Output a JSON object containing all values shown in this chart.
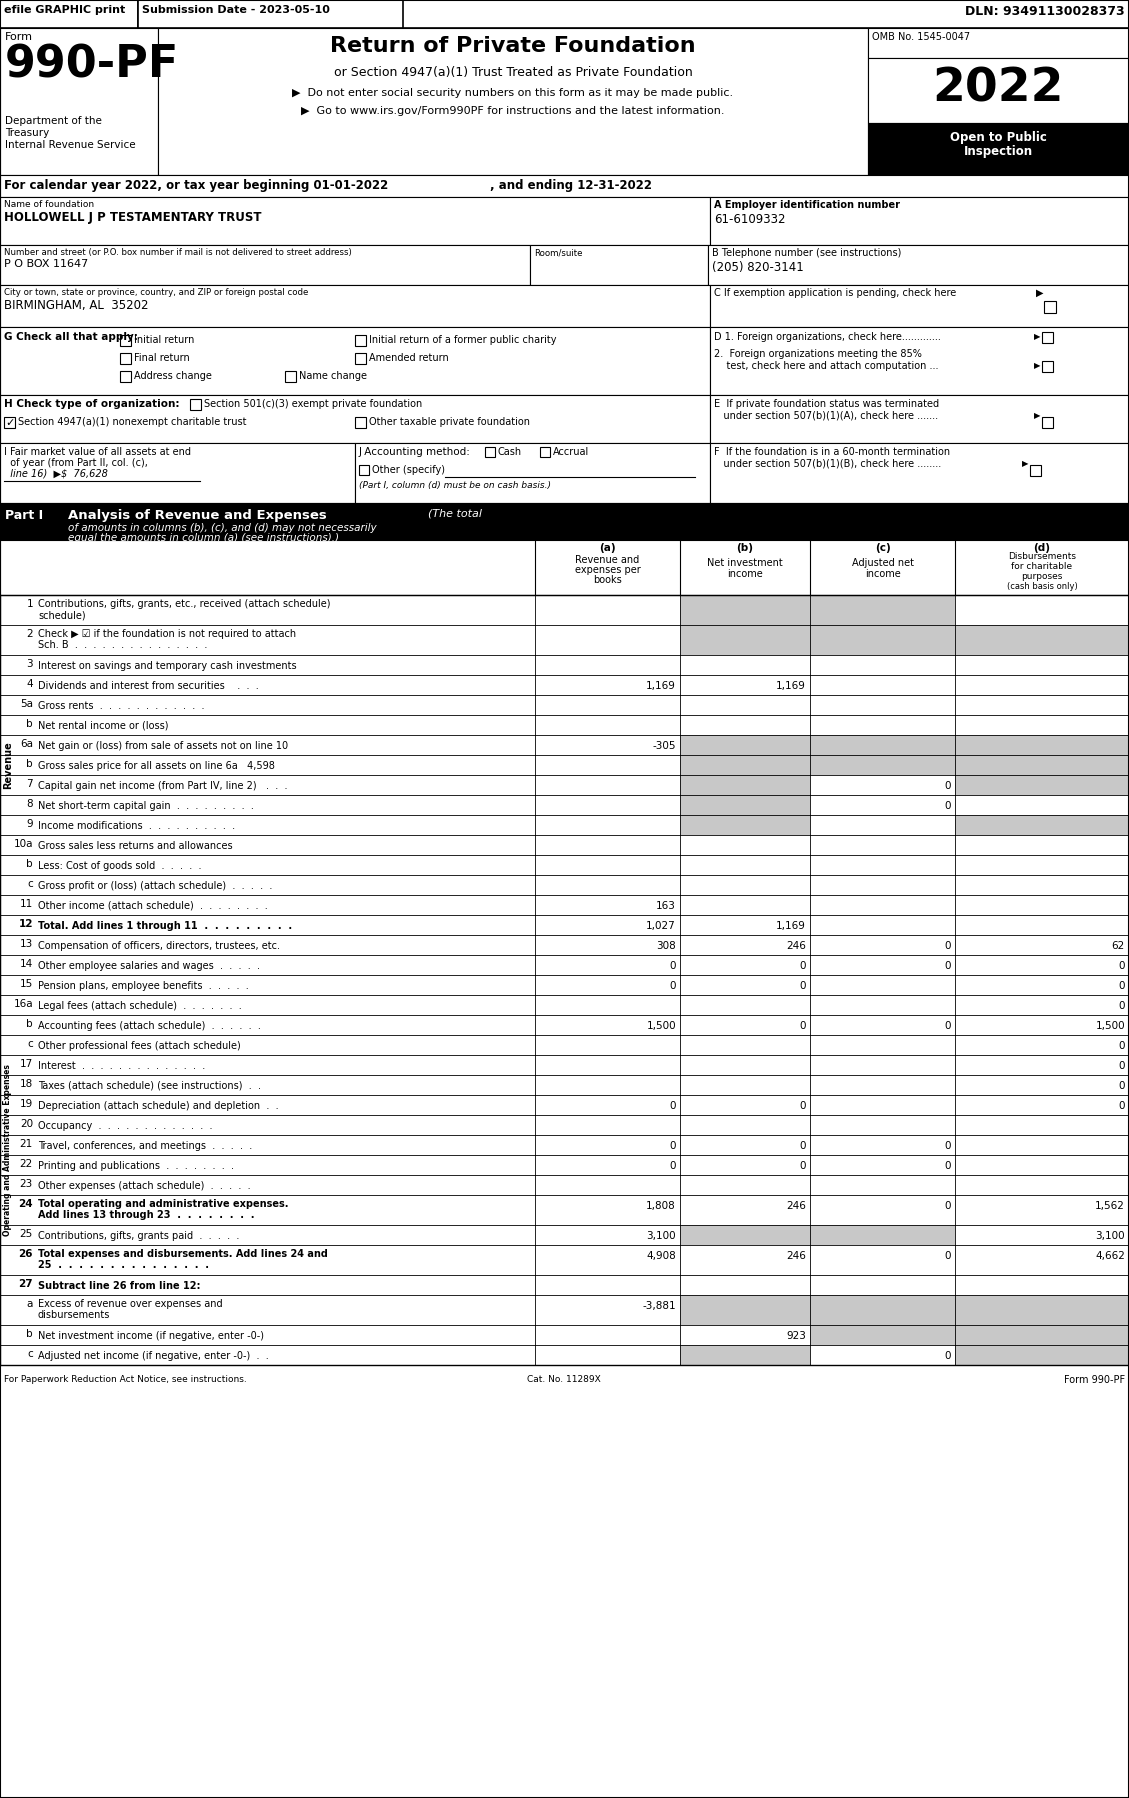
{
  "efile_text": "efile GRAPHIC print",
  "submission_date": "Submission Date - 2023-05-10",
  "dln": "DLN: 93491130028373",
  "omb": "OMB No. 1545-0047",
  "year": "2022",
  "form_label": "Form",
  "form_number": "990-PF",
  "title_main": "Return of Private Foundation",
  "title_sub": "or Section 4947(a)(1) Trust Treated as Private Foundation",
  "bullet1": "▶  Do not enter social security numbers on this form as it may be made public.",
  "bullet2": "▶  Go to www.irs.gov/Form990PF for instructions and the latest information.",
  "dept1": "Department of the",
  "dept2": "Treasury",
  "dept3": "Internal Revenue Service",
  "open_public": "Open to Public",
  "inspection": "Inspection",
  "calendar_line": "For calendar year 2022, or tax year beginning 01-01-2022",
  "ending_line": ", and ending 12-31-2022",
  "name_label": "Name of foundation",
  "name_value": "HOLLOWELL J P TESTAMENTARY TRUST",
  "ein_label": "A Employer identification number",
  "ein_value": "61-6109332",
  "addr_label": "Number and street (or P.O. box number if mail is not delivered to street address)",
  "addr_value": "P O BOX 11647",
  "room_label": "Room/suite",
  "phone_label": "B Telephone number (see instructions)",
  "phone_value": "(205) 820-3141",
  "city_label": "City or town, state or province, country, and ZIP or foreign postal code",
  "city_value": "BIRMINGHAM, AL  35202",
  "c_label": "C If exemption application is pending, check here",
  "g_label": "G Check all that apply:",
  "d1_label": "D 1. Foreign organizations, check here.............",
  "d2_line1": "2.  Foreign organizations meeting the 85%",
  "d2_line2": "    test, check here and attach computation ...",
  "e_line1": "E  If private foundation status was terminated",
  "e_line2": "   under section 507(b)(1)(A), check here .......",
  "h_label": "H Check type of organization:",
  "h_501": "Section 501(c)(3) exempt private foundation",
  "h_4947": "Section 4947(a)(1) nonexempt charitable trust",
  "h_other": "Other taxable private foundation",
  "i_line1": "I Fair market value of all assets at end",
  "i_line2": "  of year (from Part II, col. (c),",
  "i_line3": "  line 16)  ▶$  76,628",
  "j_label": "J Accounting method:",
  "j_cash": "Cash",
  "j_accrual": "Accrual",
  "j_other": "Other (specify)",
  "j_note": "(Part I, column (d) must be on cash basis.)",
  "f_line1": "F  If the foundation is in a 60-month termination",
  "f_line2": "   under section 507(b)(1)(B), check here ........",
  "part1_label": "Part I",
  "part1_title": "Analysis of Revenue and Expenses",
  "part1_desc1": "The total",
  "part1_desc2": "of amounts in columns (b), (c), and (d) may not necessarily",
  "part1_desc3": "equal the amounts in column (a) (see instructions).)",
  "col_a_lbl": "(a)",
  "col_b_lbl": "(b)",
  "col_c_lbl": "(c)",
  "col_d_lbl": "(d)",
  "col_a1": "Revenue and",
  "col_a2": "expenses per",
  "col_a3": "books",
  "col_b1": "Net investment",
  "col_b2": "income",
  "col_c1": "Adjusted net",
  "col_c2": "income",
  "col_d1": "Disbursements",
  "col_d2": "for charitable",
  "col_d3": "purposes",
  "col_d4": "(cash basis only)",
  "revenue_label": "Revenue",
  "expense_label": "Operating and Administrative Expenses",
  "rows": [
    {
      "num": "1",
      "label": "Contributions, gifts, grants, etc., received (attach schedule)",
      "two_line": true,
      "line2": "schedule)",
      "a": "",
      "b": "",
      "c": "",
      "d": "",
      "shaded": [
        false,
        true,
        true,
        false
      ],
      "bold": false
    },
    {
      "num": "2",
      "label": "Check ▶ ☑ if the foundation is not required to attach Sch. B  .  .  .  .  .  .  .  .  .  .  .  .  .  .  .",
      "two_line": true,
      "line1": "Check ▶ ☑ if the foundation is not required to attach",
      "line2": "Sch. B  .  .  .  .  .  .  .  .  .  .  .  .  .  .  .",
      "a": "",
      "b": "",
      "c": "",
      "d": "",
      "shaded": [
        false,
        true,
        true,
        true
      ],
      "bold": false
    },
    {
      "num": "3",
      "label": "Interest on savings and temporary cash investments",
      "two_line": false,
      "a": "",
      "b": "",
      "c": "",
      "d": "",
      "shaded": [
        false,
        false,
        false,
        false
      ],
      "bold": false
    },
    {
      "num": "4",
      "label": "Dividends and interest from securities    .  .  .",
      "two_line": false,
      "a": "1,169",
      "b": "1,169",
      "c": "",
      "d": "",
      "shaded": [
        false,
        false,
        false,
        false
      ],
      "bold": false
    },
    {
      "num": "5a",
      "label": "Gross rents  .  .  .  .  .  .  .  .  .  .  .  .",
      "two_line": false,
      "a": "",
      "b": "",
      "c": "",
      "d": "",
      "shaded": [
        false,
        false,
        false,
        false
      ],
      "bold": false
    },
    {
      "num": "b",
      "label": "Net rental income or (loss)",
      "two_line": false,
      "a": "",
      "b": "",
      "c": "",
      "d": "",
      "shaded": [
        false,
        false,
        false,
        false
      ],
      "bold": false
    },
    {
      "num": "6a",
      "label": "Net gain or (loss) from sale of assets not on line 10",
      "two_line": false,
      "a": "-305",
      "b": "",
      "c": "",
      "d": "",
      "shaded": [
        false,
        true,
        true,
        true
      ],
      "bold": false
    },
    {
      "num": "b",
      "label": "Gross sales price for all assets on line 6a   4,598",
      "two_line": false,
      "a": "",
      "b": "",
      "c": "",
      "d": "",
      "shaded": [
        false,
        true,
        true,
        true
      ],
      "bold": false
    },
    {
      "num": "7",
      "label": "Capital gain net income (from Part IV, line 2)   .  .  .",
      "two_line": false,
      "a": "",
      "b": "",
      "c": "0",
      "d": "",
      "shaded": [
        false,
        true,
        false,
        true
      ],
      "bold": false
    },
    {
      "num": "8",
      "label": "Net short-term capital gain  .  .  .  .  .  .  .  .  .",
      "two_line": false,
      "a": "",
      "b": "",
      "c": "0",
      "d": "",
      "shaded": [
        false,
        true,
        false,
        false
      ],
      "bold": false
    },
    {
      "num": "9",
      "label": "Income modifications  .  .  .  .  .  .  .  .  .  .",
      "two_line": false,
      "a": "",
      "b": "",
      "c": "",
      "d": "",
      "shaded": [
        false,
        true,
        false,
        true
      ],
      "bold": false
    },
    {
      "num": "10a",
      "label": "Gross sales less returns and allowances",
      "two_line": false,
      "a": "",
      "b": "",
      "c": "",
      "d": "",
      "shaded": [
        false,
        false,
        false,
        false
      ],
      "bold": false
    },
    {
      "num": "b",
      "label": "Less: Cost of goods sold  .  .  .  .  .",
      "two_line": false,
      "a": "",
      "b": "",
      "c": "",
      "d": "",
      "shaded": [
        false,
        false,
        false,
        false
      ],
      "bold": false
    },
    {
      "num": "c",
      "label": "Gross profit or (loss) (attach schedule)  .  .  .  .  .",
      "two_line": false,
      "a": "",
      "b": "",
      "c": "",
      "d": "",
      "shaded": [
        false,
        false,
        false,
        false
      ],
      "bold": false
    },
    {
      "num": "11",
      "label": "Other income (attach schedule)  .  .  .  .  .  .  .  .",
      "two_line": false,
      "a": "163",
      "b": "",
      "c": "",
      "d": "",
      "shaded": [
        false,
        false,
        false,
        false
      ],
      "bold": false
    },
    {
      "num": "12",
      "label": "Total. Add lines 1 through 11  .  .  .  .  .  .  .  .  .",
      "two_line": false,
      "a": "1,027",
      "b": "1,169",
      "c": "",
      "d": "",
      "shaded": [
        false,
        false,
        false,
        false
      ],
      "bold": true
    },
    {
      "num": "13",
      "label": "Compensation of officers, directors, trustees, etc.",
      "two_line": false,
      "a": "308",
      "b": "246",
      "c": "0",
      "d": "62",
      "shaded": [
        false,
        false,
        false,
        false
      ],
      "bold": false
    },
    {
      "num": "14",
      "label": "Other employee salaries and wages  .  .  .  .  .",
      "two_line": false,
      "a": "0",
      "b": "0",
      "c": "0",
      "d": "0",
      "shaded": [
        false,
        false,
        false,
        false
      ],
      "bold": false
    },
    {
      "num": "15",
      "label": "Pension plans, employee benefits  .  .  .  .  .",
      "two_line": false,
      "a": "0",
      "b": "0",
      "c": "",
      "d": "0",
      "shaded": [
        false,
        false,
        false,
        false
      ],
      "bold": false
    },
    {
      "num": "16a",
      "label": "Legal fees (attach schedule)  .  .  .  .  .  .  .",
      "two_line": false,
      "a": "",
      "b": "",
      "c": "",
      "d": "0",
      "shaded": [
        false,
        false,
        false,
        false
      ],
      "bold": false
    },
    {
      "num": "b",
      "label": "Accounting fees (attach schedule)  .  .  .  .  .  .",
      "two_line": false,
      "a": "1,500",
      "b": "0",
      "c": "0",
      "d": "1,500",
      "shaded": [
        false,
        false,
        false,
        false
      ],
      "bold": false
    },
    {
      "num": "c",
      "label": "Other professional fees (attach schedule)",
      "two_line": false,
      "a": "",
      "b": "",
      "c": "",
      "d": "0",
      "shaded": [
        false,
        false,
        false,
        false
      ],
      "bold": false
    },
    {
      "num": "17",
      "label": "Interest  .  .  .  .  .  .  .  .  .  .  .  .  .  .",
      "two_line": false,
      "a": "",
      "b": "",
      "c": "",
      "d": "0",
      "shaded": [
        false,
        false,
        false,
        false
      ],
      "bold": false
    },
    {
      "num": "18",
      "label": "Taxes (attach schedule) (see instructions)  .  .",
      "two_line": false,
      "a": "",
      "b": "",
      "c": "",
      "d": "0",
      "shaded": [
        false,
        false,
        false,
        false
      ],
      "bold": false
    },
    {
      "num": "19",
      "label": "Depreciation (attach schedule) and depletion  .  .",
      "two_line": false,
      "a": "0",
      "b": "0",
      "c": "",
      "d": "0",
      "shaded": [
        false,
        false,
        false,
        false
      ],
      "bold": false
    },
    {
      "num": "20",
      "label": "Occupancy  .  .  .  .  .  .  .  .  .  .  .  .  .",
      "two_line": false,
      "a": "",
      "b": "",
      "c": "",
      "d": "",
      "shaded": [
        false,
        false,
        false,
        false
      ],
      "bold": false
    },
    {
      "num": "21",
      "label": "Travel, conferences, and meetings  .  .  .  .  .",
      "two_line": false,
      "a": "0",
      "b": "0",
      "c": "0",
      "d": "",
      "shaded": [
        false,
        false,
        false,
        false
      ],
      "bold": false
    },
    {
      "num": "22",
      "label": "Printing and publications  .  .  .  .  .  .  .  .",
      "two_line": false,
      "a": "0",
      "b": "0",
      "c": "0",
      "d": "",
      "shaded": [
        false,
        false,
        false,
        false
      ],
      "bold": false
    },
    {
      "num": "23",
      "label": "Other expenses (attach schedule)  .  .  .  .  .",
      "two_line": false,
      "a": "",
      "b": "",
      "c": "",
      "d": "",
      "shaded": [
        false,
        false,
        false,
        false
      ],
      "bold": false
    },
    {
      "num": "24",
      "label": "Total operating and administrative expenses.",
      "two_line": true,
      "line1": "Total operating and administrative expenses.",
      "line2": "Add lines 13 through 23  .  .  .  .  .  .  .  .",
      "a": "1,808",
      "b": "246",
      "c": "0",
      "d": "1,562",
      "shaded": [
        false,
        false,
        false,
        false
      ],
      "bold": true
    },
    {
      "num": "25",
      "label": "Contributions, gifts, grants paid  .  .  .  .  .",
      "two_line": false,
      "a": "3,100",
      "b": "",
      "c": "",
      "d": "3,100",
      "shaded": [
        false,
        true,
        true,
        false
      ],
      "bold": false
    },
    {
      "num": "26",
      "label": "Total expenses and disbursements. Add lines 24 and 25",
      "two_line": true,
      "line1": "Total expenses and disbursements. Add lines 24 and",
      "line2": "25  .  .  .  .  .  .  .  .  .  .  .  .  .  .  .",
      "a": "4,908",
      "b": "246",
      "c": "0",
      "d": "4,662",
      "shaded": [
        false,
        false,
        false,
        false
      ],
      "bold": true
    },
    {
      "num": "27",
      "label": "Subtract line 26 from line 12:",
      "two_line": false,
      "a": "",
      "b": "",
      "c": "",
      "d": "",
      "shaded": [
        false,
        false,
        false,
        false
      ],
      "bold": true
    },
    {
      "num": "a",
      "label": "Excess of revenue over expenses and disbursements",
      "two_line": true,
      "line1": "Excess of revenue over expenses and",
      "line2": "disbursements",
      "a": "-3,881",
      "b": "",
      "c": "",
      "d": "",
      "shaded": [
        false,
        true,
        true,
        true
      ],
      "bold": false
    },
    {
      "num": "b",
      "label": "Net investment income (if negative, enter -0-)",
      "two_line": false,
      "a": "",
      "b": "923",
      "c": "",
      "d": "",
      "shaded": [
        false,
        false,
        true,
        true
      ],
      "bold": false
    },
    {
      "num": "c",
      "label": "Adjusted net income (if negative, enter -0-)  .  .",
      "two_line": false,
      "a": "",
      "b": "",
      "c": "0",
      "d": "",
      "shaded": [
        false,
        true,
        false,
        true
      ],
      "bold": false
    }
  ],
  "footer_left": "For Paperwork Reduction Act Notice, see instructions.",
  "footer_cat": "Cat. No. 11289X",
  "footer_right": "Form 990-PF",
  "shaded_color": "#c8c8c8",
  "black": "#000000",
  "white": "#ffffff"
}
